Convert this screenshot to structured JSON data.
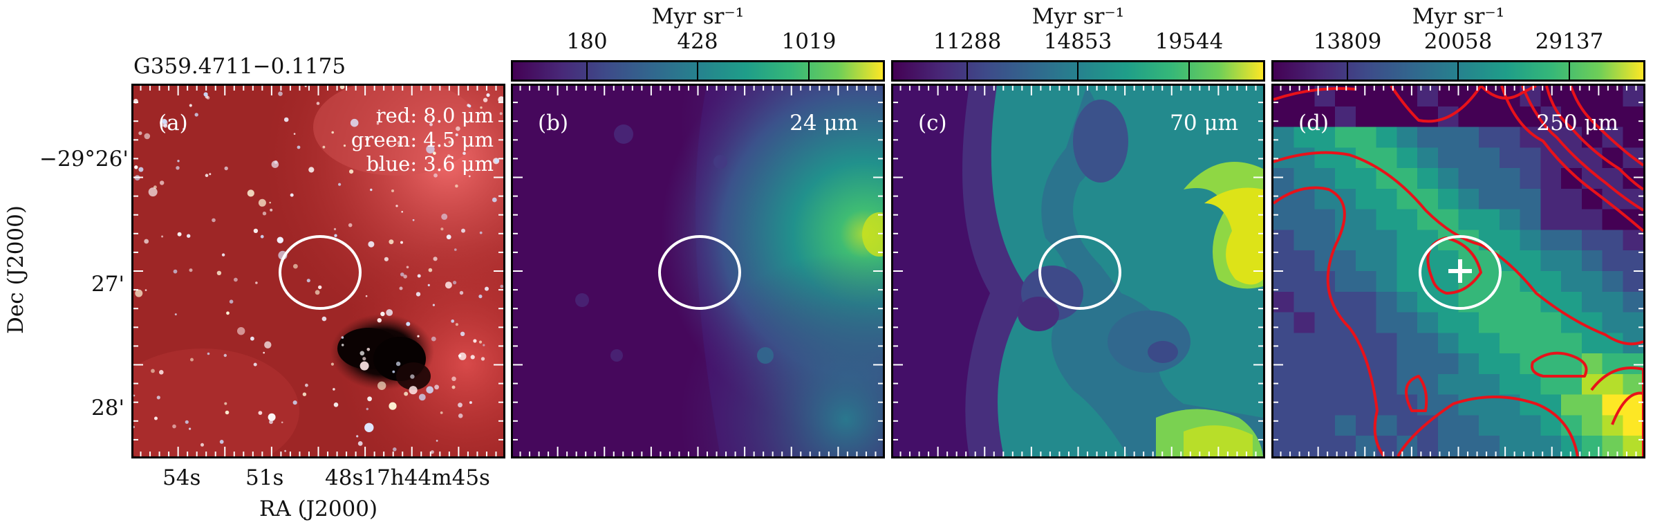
{
  "source_name": "G359.4711−0.1175",
  "axes": {
    "ylabel": "Dec (J2000)",
    "xlabel": "RA (J2000)",
    "dec_ticks": [
      "−29°26'",
      "27'",
      "28'"
    ],
    "ra_ticks": [
      "54s",
      "51s",
      "48s17h44m45s"
    ]
  },
  "panels": [
    {
      "label": "(a)",
      "band": "",
      "rgb_legend": [
        "red: 8.0 μm",
        "green: 4.5 μm",
        "blue: 3.6 μm"
      ],
      "colorbar": null
    },
    {
      "label": "(b)",
      "band": "24 μm",
      "colorbar": {
        "unit": "Myr sr⁻¹",
        "ticks": [
          "180",
          "428",
          "1019"
        ]
      }
    },
    {
      "label": "(c)",
      "band": "70 μm",
      "colorbar": {
        "unit": "Myr sr⁻¹",
        "ticks": [
          "11288",
          "14853",
          "19544"
        ]
      }
    },
    {
      "label": "(d)",
      "band": "250 μm",
      "colorbar": {
        "unit": "Myr sr⁻¹",
        "ticks": [
          "13809",
          "20058",
          "29137"
        ]
      }
    }
  ],
  "colors": {
    "ellipse": "#ffffff",
    "contour": "#e8121a",
    "viridis_low": "#440154",
    "viridis_high": "#fde725"
  }
}
